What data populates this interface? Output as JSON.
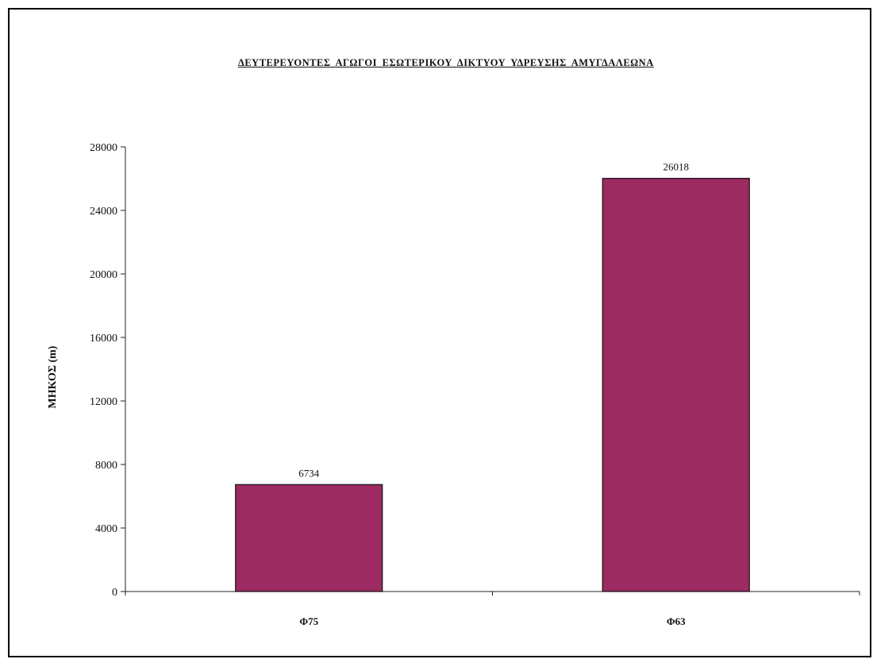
{
  "chart_data": {
    "type": "bar",
    "title": "ΔΕΥΤΕΡΕΥΟΝΤΕΣ ΑΓΩΓΟΙ ΕΣΩΤΕΡΙΚΟΥ ΔΙΚΤΥΟΥ ΥΔΡΕΥΣΗΣ ΑΜΥΓΔΑΛΕΩΝΑ",
    "xlabel": "",
    "ylabel": "ΜΗΚΟΣ (m)",
    "categories": [
      "Φ75",
      "Φ63"
    ],
    "values": [
      6734,
      26018
    ],
    "data_labels": [
      "6734",
      "26018"
    ],
    "ylim": [
      0,
      28000
    ],
    "yticks": [
      0,
      4000,
      8000,
      12000,
      16000,
      20000,
      24000,
      28000
    ],
    "ytick_labels": [
      "0",
      "4000",
      "8000",
      "12000",
      "16000",
      "20000",
      "24000",
      "28000"
    ],
    "bar_color": "#9b2b61",
    "grid": false,
    "legend": "none"
  }
}
